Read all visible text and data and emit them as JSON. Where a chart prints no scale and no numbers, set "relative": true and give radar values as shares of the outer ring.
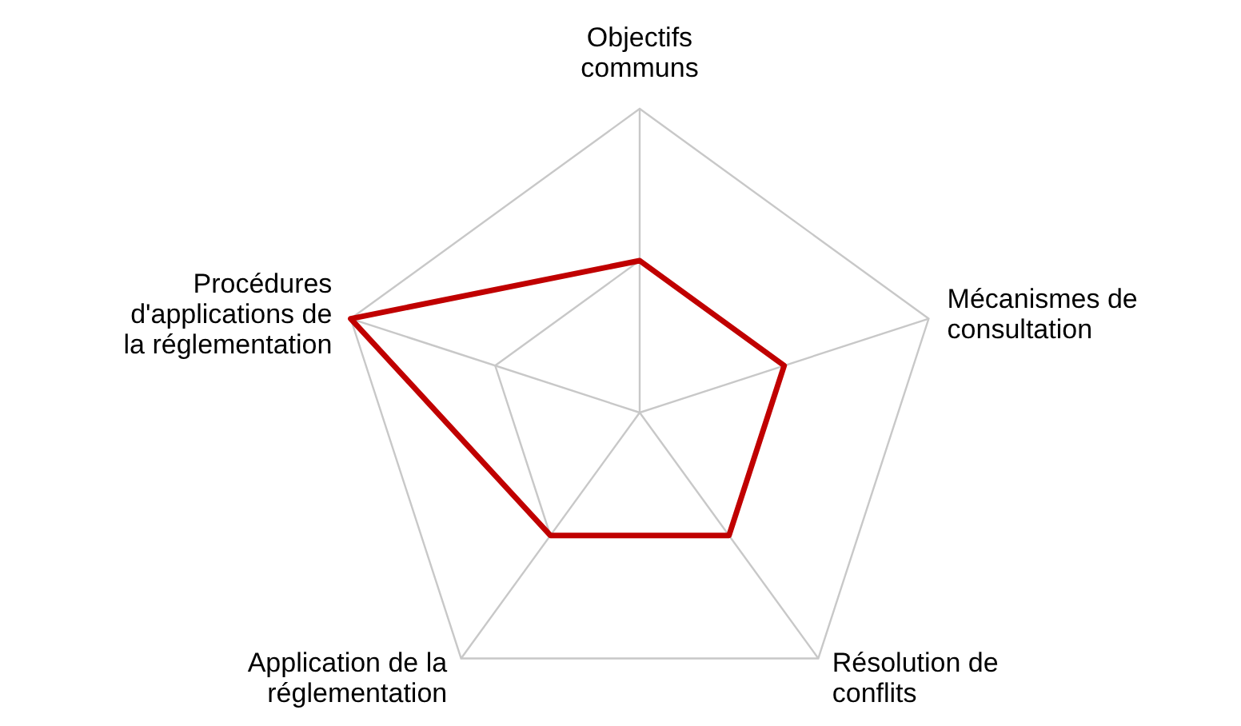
{
  "chart_data": {
    "type": "radar",
    "relative": true,
    "grid": true,
    "legend": false,
    "marker": "none",
    "categories": [
      "Objectifs\ncommuns",
      "Mécanismes de\nconsultation",
      "Résolution de\nconflits",
      "Application de la\nréglementation",
      "Procédures\nd'applications de\nla réglementation"
    ],
    "series": [
      {
        "color": "#c00000",
        "values": [
          0.5,
          0.5,
          0.5,
          0.5,
          1
        ]
      }
    ]
  }
}
